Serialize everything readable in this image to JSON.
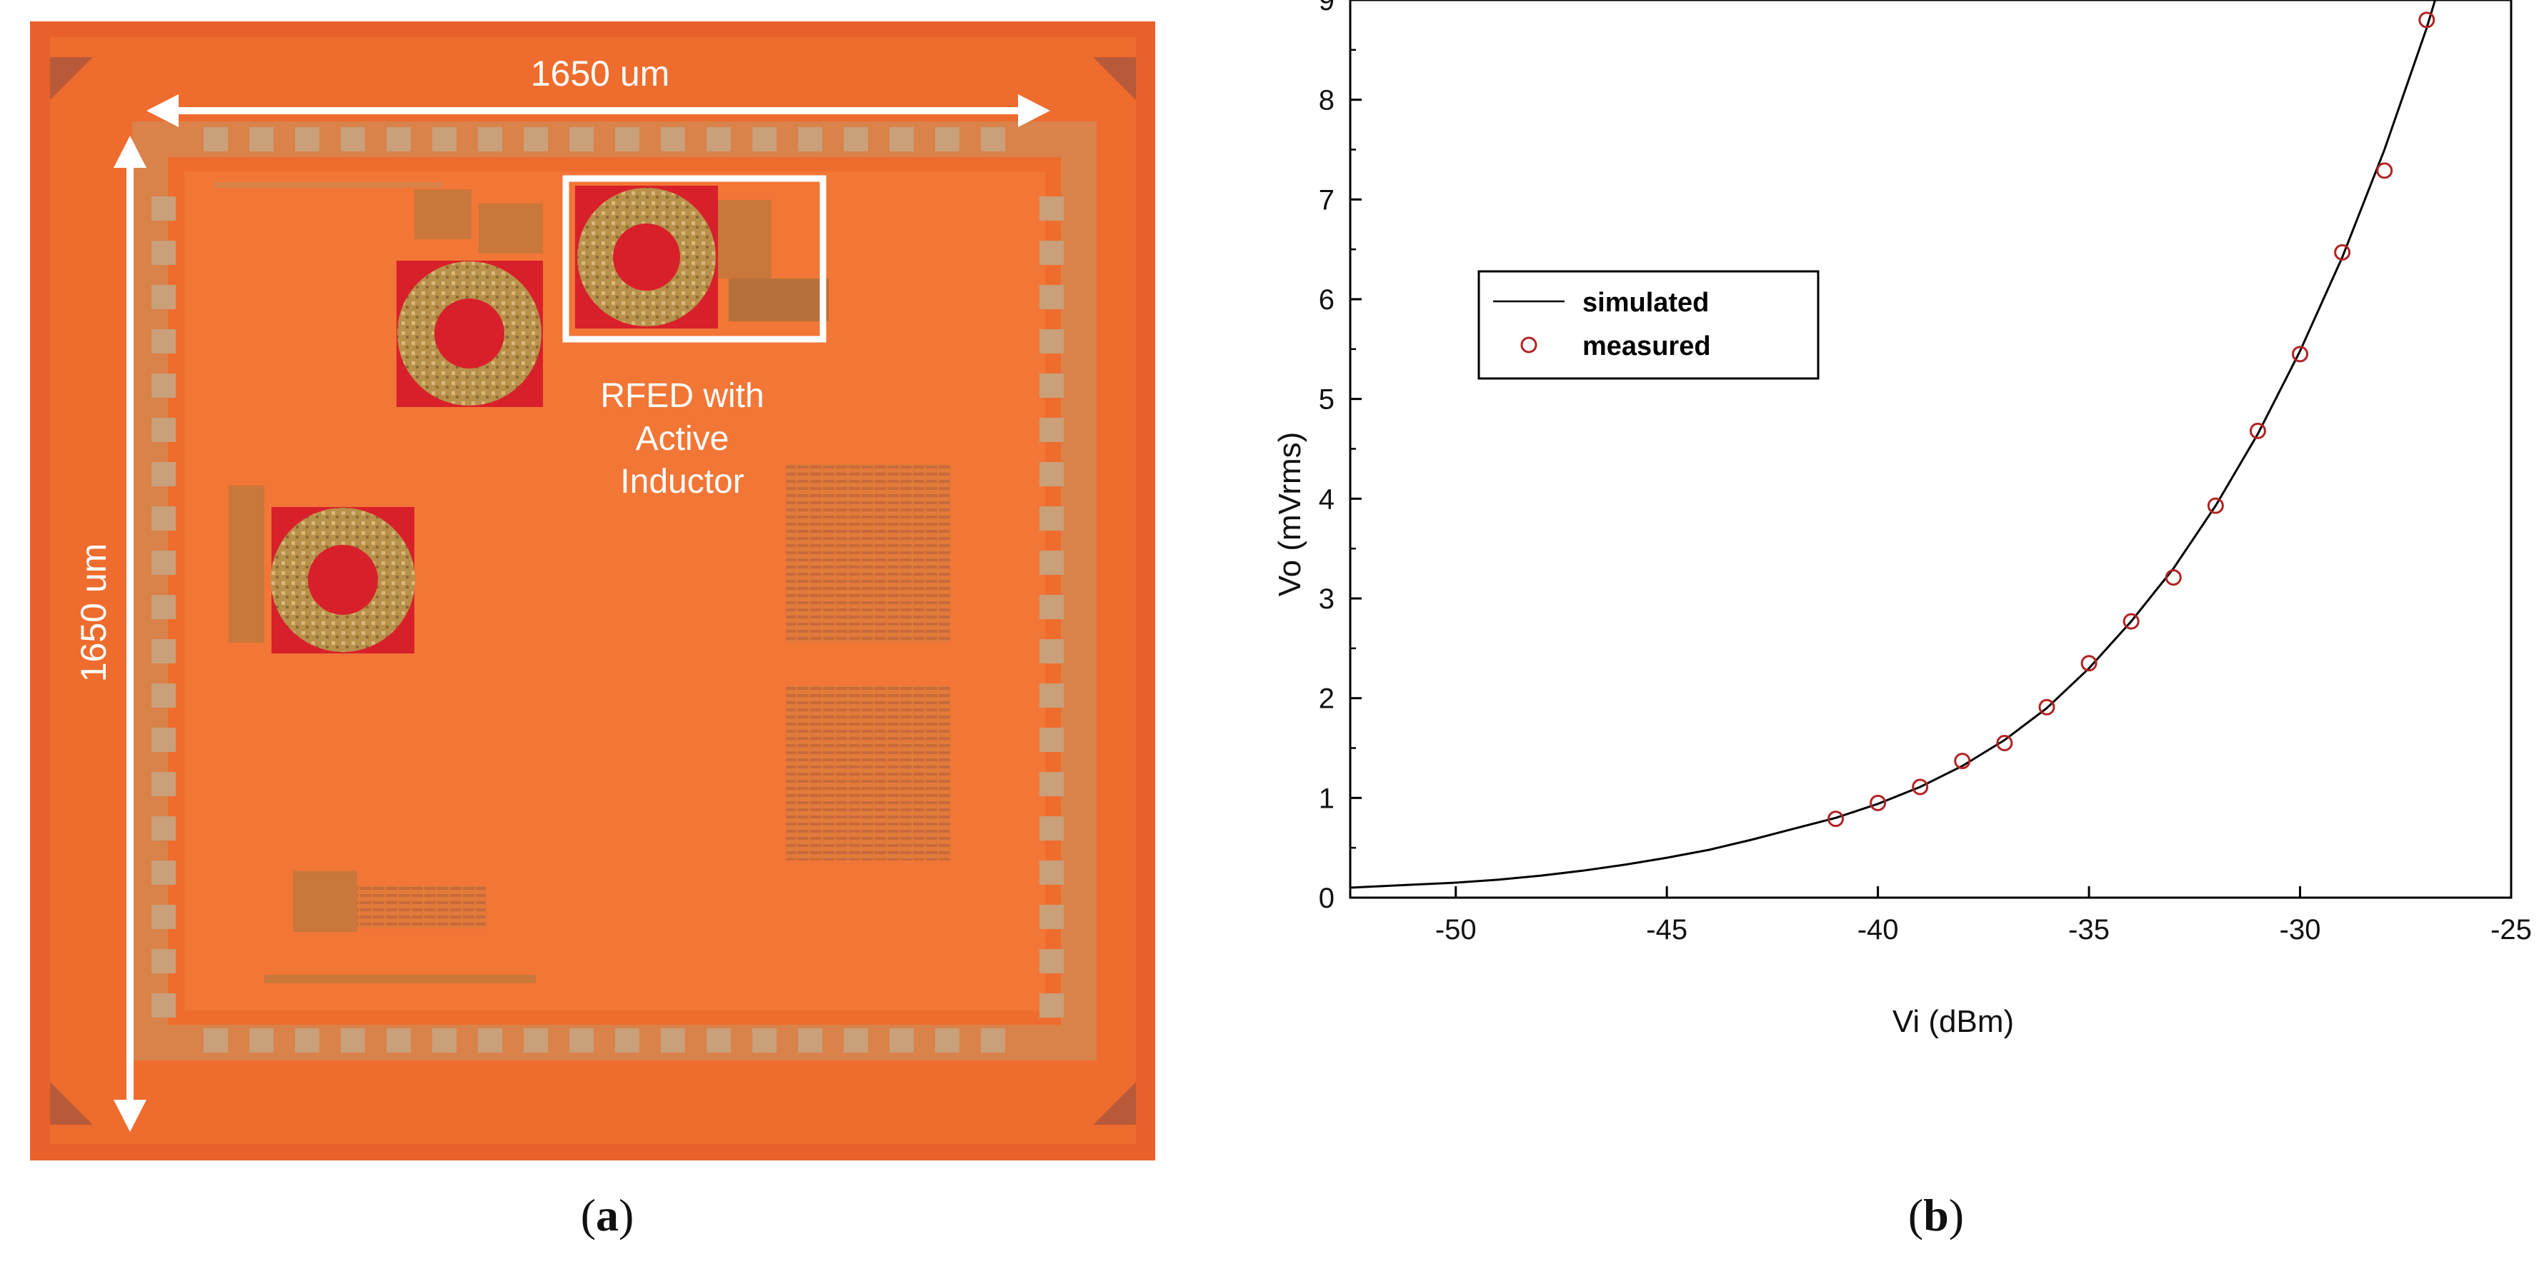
{
  "chip": {
    "width_label": "1650 um",
    "height_label": "1650 um",
    "highlight_label_lines": [
      "RFED with",
      "Active",
      "Inductor"
    ],
    "colors": {
      "die": "#ec6a2e",
      "inner": "#f07a3a",
      "pad": "#c9a07a",
      "inductor_bg": "#d8202a",
      "annotation": "#ffffff"
    }
  },
  "captions": {
    "left": "a",
    "right": "b"
  },
  "chart_data": {
    "type": "line",
    "xlabel": "Vi (dBm)",
    "ylabel": "Vo (mVrms)",
    "xlim": [
      -52.5,
      -25
    ],
    "ylim": [
      0,
      9
    ],
    "xticks": [
      -50,
      -45,
      -40,
      -35,
      -30,
      -25
    ],
    "yticks": [
      0,
      1,
      2,
      3,
      4,
      5,
      6,
      7,
      8,
      9
    ],
    "grid": false,
    "legend_position": "upper-left",
    "series": [
      {
        "name": "simulated",
        "style": "line",
        "color": "#000000",
        "x": [
          -52.5,
          -51,
          -50,
          -49,
          -48,
          -47,
          -46,
          -45,
          -44,
          -43,
          -42,
          -41,
          -40,
          -39,
          -38,
          -37,
          -36,
          -35,
          -34,
          -33,
          -32,
          -31,
          -30,
          -29,
          -28,
          -27,
          -26.8
        ],
        "y": [
          0.1,
          0.13,
          0.15,
          0.18,
          0.22,
          0.27,
          0.33,
          0.4,
          0.48,
          0.58,
          0.69,
          0.8,
          0.94,
          1.11,
          1.32,
          1.58,
          1.9,
          2.3,
          2.77,
          3.3,
          3.93,
          4.65,
          5.48,
          6.42,
          7.5,
          8.72,
          9.0
        ]
      },
      {
        "name": "measured",
        "style": "markers",
        "color": "#b22222",
        "x": [
          -41,
          -40,
          -39,
          -38,
          -37,
          -36,
          -35,
          -34,
          -33,
          -32,
          -31,
          -30,
          -29,
          -28,
          -27
        ],
        "y": [
          0.79,
          0.95,
          1.11,
          1.37,
          1.55,
          1.91,
          2.35,
          2.77,
          3.21,
          3.93,
          4.68,
          5.45,
          6.47,
          7.29,
          8.8
        ]
      }
    ]
  }
}
